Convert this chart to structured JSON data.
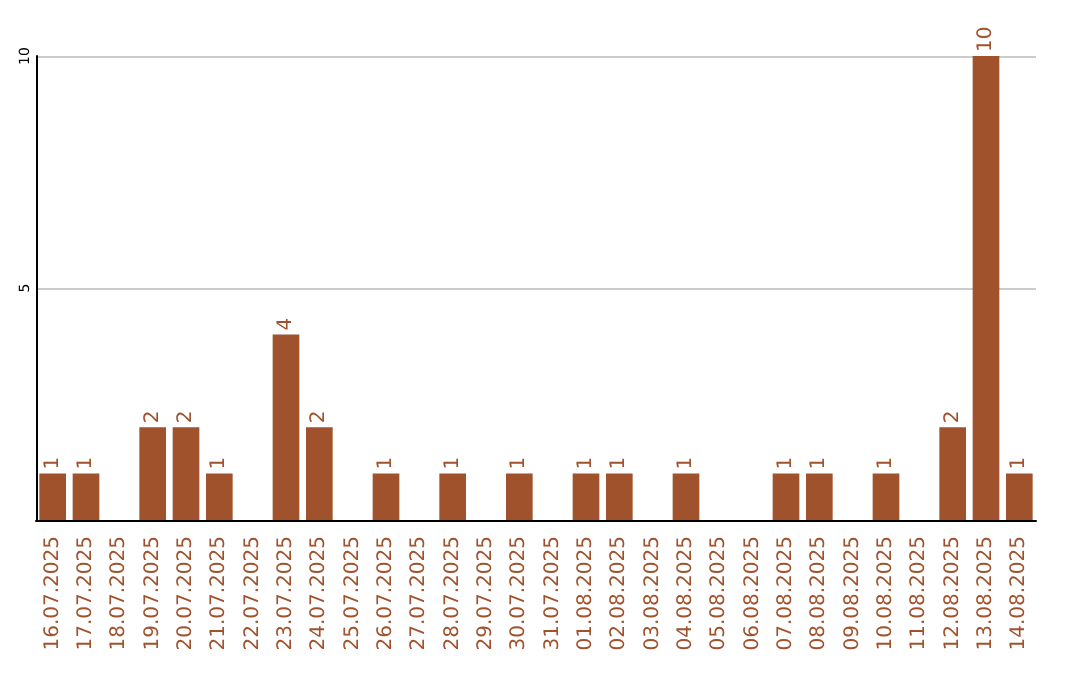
{
  "chart_data": {
    "type": "bar",
    "categories": [
      "16.07.2025",
      "17.07.2025",
      "18.07.2025",
      "19.07.2025",
      "20.07.2025",
      "21.07.2025",
      "22.07.2025",
      "23.07.2025",
      "24.07.2025",
      "25.07.2025",
      "26.07.2025",
      "27.07.2025",
      "28.07.2025",
      "29.07.2025",
      "30.07.2025",
      "31.07.2025",
      "01.08.2025",
      "02.08.2025",
      "03.08.2025",
      "04.08.2025",
      "05.08.2025",
      "06.08.2025",
      "07.08.2025",
      "08.08.2025",
      "09.08.2025",
      "10.08.2025",
      "11.08.2025",
      "12.08.2025",
      "13.08.2025",
      "14.08.2025"
    ],
    "values": [
      1,
      1,
      0,
      2,
      2,
      1,
      0,
      4,
      2,
      0,
      1,
      0,
      1,
      0,
      1,
      0,
      1,
      1,
      0,
      1,
      0,
      0,
      1,
      1,
      0,
      1,
      0,
      2,
      10,
      1
    ],
    "value_labels": [
      "1",
      "1",
      null,
      "2",
      "2",
      "1",
      null,
      "4",
      "2",
      null,
      "1",
      null,
      "1",
      null,
      "1",
      null,
      "1",
      "1",
      null,
      "1",
      null,
      null,
      "1",
      "1",
      null,
      "1",
      null,
      "2",
      "10",
      "1"
    ],
    "color": "#a0522d",
    "ylim": [
      0,
      10
    ],
    "yticks": [
      {
        "value": 0,
        "label": null
      },
      5,
      10
    ],
    "grid": "y"
  }
}
